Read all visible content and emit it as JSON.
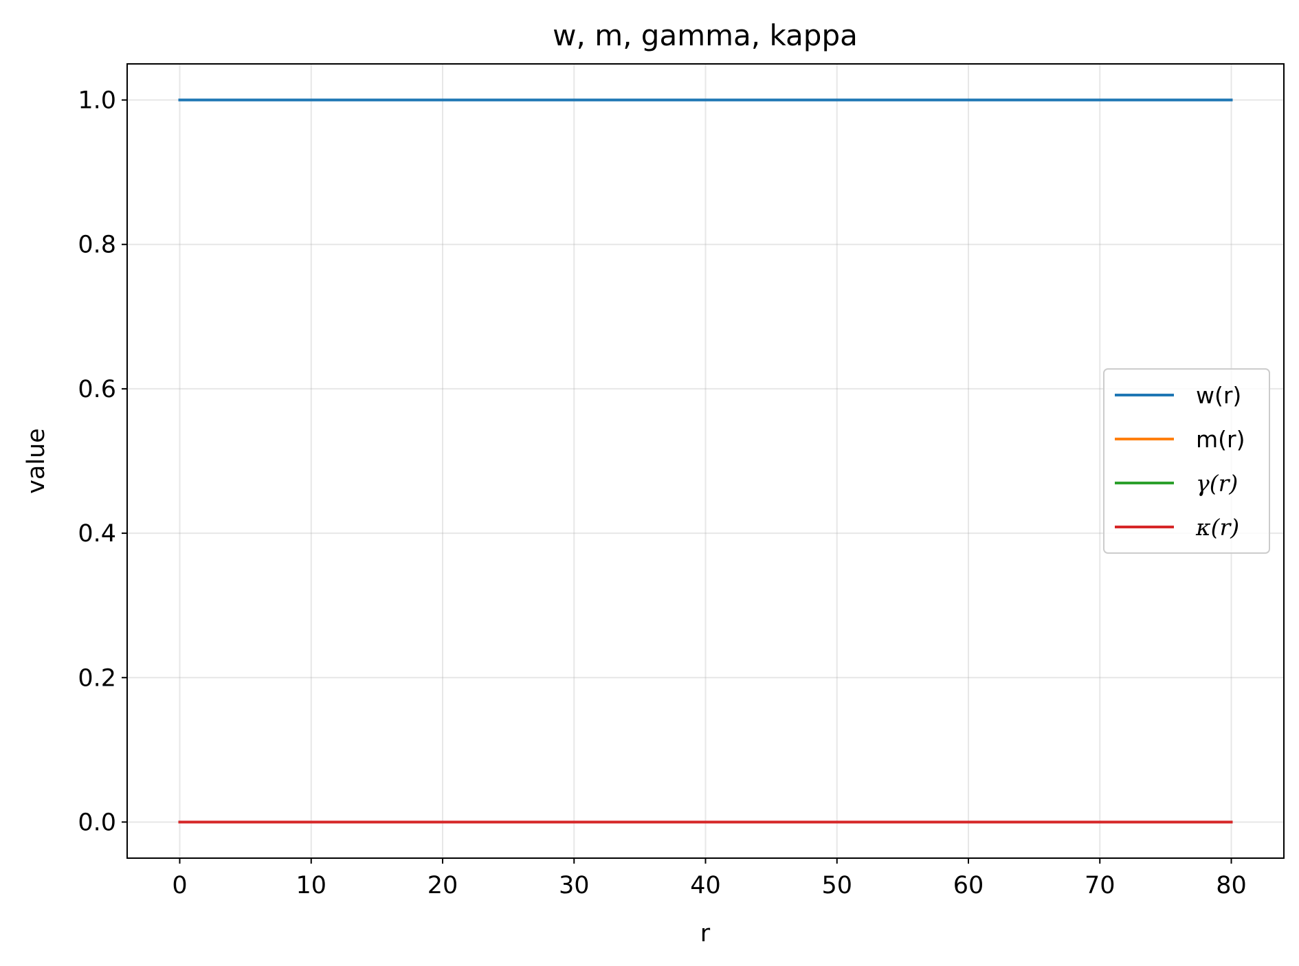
{
  "chart_data": {
    "type": "line",
    "title": "w, m, gamma, kappa",
    "xlabel": "r",
    "ylabel": "value",
    "xlim": [
      -4,
      84
    ],
    "ylim": [
      -0.05,
      1.05
    ],
    "xticks": [
      0,
      10,
      20,
      30,
      40,
      50,
      60,
      70,
      80
    ],
    "xtick_labels": [
      "0",
      "10",
      "20",
      "30",
      "40",
      "50",
      "60",
      "70",
      "80"
    ],
    "yticks": [
      0.0,
      0.2,
      0.4,
      0.6,
      0.8,
      1.0
    ],
    "ytick_labels": [
      "0.0",
      "0.2",
      "0.4",
      "0.6",
      "0.8",
      "1.0"
    ],
    "grid": true,
    "legend_position": "center-right",
    "series": [
      {
        "name": "w(r)",
        "color": "#1f77b4",
        "x": [
          0,
          80
        ],
        "y": [
          1.0,
          1.0
        ]
      },
      {
        "name": "m(r)",
        "color": "#ff7f0e",
        "x": [
          0,
          80
        ],
        "y": [
          0.0,
          0.0
        ]
      },
      {
        "name": "γ(r)",
        "color": "#2ca02c",
        "x": [
          0,
          80
        ],
        "y": [
          0.0,
          0.0
        ]
      },
      {
        "name": "κ(r)",
        "color": "#d62728",
        "x": [
          0,
          80
        ],
        "y": [
          0.0,
          0.0
        ]
      }
    ]
  }
}
